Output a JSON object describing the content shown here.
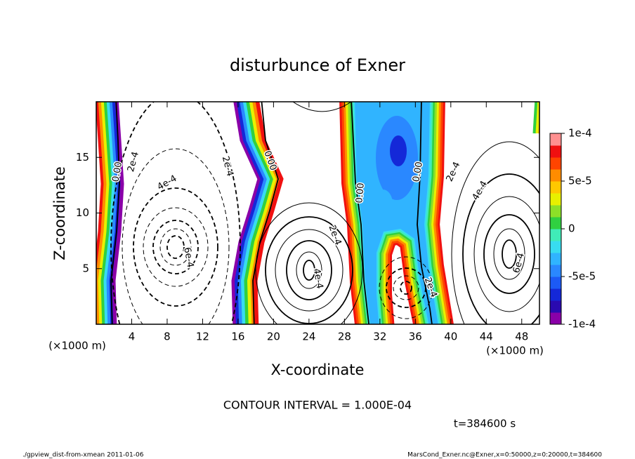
{
  "chart_data": {
    "type": "contour",
    "title": "disturbunce of Exner",
    "xlabel": "X-coordinate",
    "ylabel": "Z-coordinate",
    "x_unit": "(×1000 m)",
    "xlim": [
      0,
      50
    ],
    "ylim": [
      0,
      20
    ],
    "xticks": [
      4,
      8,
      12,
      16,
      20,
      24,
      28,
      32,
      36,
      40,
      44,
      48
    ],
    "yticks": [
      5,
      10,
      15
    ],
    "colorbar": {
      "lim": [
        -0.0001,
        0.0001
      ],
      "ticks": [
        {
          "value": 0.0001,
          "label": "1e-4"
        },
        {
          "value": 5e-05,
          "label": "5e-5"
        },
        0,
        {
          "value": -5e-05,
          "label": "-5e-5"
        },
        {
          "value": -0.0001,
          "label": "-1e-4"
        }
      ],
      "colors": [
        "#8a00a8",
        "#2a0ab0",
        "#1428d8",
        "#1c5af5",
        "#2a88ff",
        "#30b4ff",
        "#38dcf0",
        "#40ecb8",
        "#30d040",
        "#8ce028",
        "#e8f000",
        "#ffc800",
        "#ff8c00",
        "#ff4400",
        "#f01010",
        "#ff9090"
      ]
    },
    "contour_labels": [
      {
        "text": "0.00",
        "x": 2.4,
        "z": 13.7
      },
      {
        "text": "2e-4",
        "x": 4.2,
        "z": 14.6
      },
      {
        "text": "4e-4",
        "x": 8.0,
        "z": 12.7
      },
      {
        "text": "6e-4",
        "x": 10.4,
        "z": 6.0
      },
      {
        "text": "2e-4",
        "x": 14.8,
        "z": 14.2
      },
      {
        "text": "0.00",
        "x": 19.6,
        "z": 14.7
      },
      {
        "text": "2e-4",
        "x": 26.9,
        "z": 8.0
      },
      {
        "text": "4e-4",
        "x": 25.0,
        "z": 4.1
      },
      {
        "text": "0.00",
        "x": 29.8,
        "z": 11.8
      },
      {
        "text": "0.00",
        "x": 36.3,
        "z": 13.7
      },
      {
        "text": "2e-4",
        "x": 37.7,
        "z": 3.3
      },
      {
        "text": "2e-4",
        "x": 40.3,
        "z": 13.7
      },
      {
        "text": "4e-4",
        "x": 43.3,
        "z": 12.0
      },
      {
        "text": "6e-4",
        "x": 47.7,
        "z": 5.5
      }
    ],
    "contour_interval_note": "CONTOUR INTERVAL = 1.000E-04",
    "time_note": "t=384600 s",
    "footer_left": "./gpview_dist-from-xmean  2011-01-06",
    "footer_right": "MarsCond_Exner.nc@Exner,x=0:50000,z=0:20000,t=384600"
  }
}
